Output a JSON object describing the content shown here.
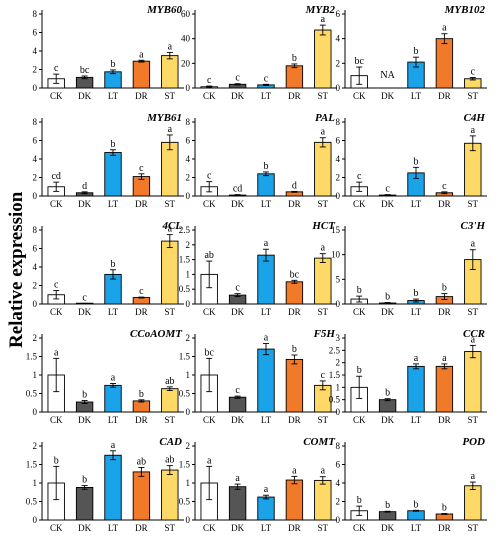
{
  "figure": {
    "ylabel": "Relative expression",
    "categories": [
      "CK",
      "DK",
      "LT",
      "DR",
      "ST"
    ],
    "bar_colors": [
      "#ffffff",
      "#555555",
      "#1aa3e8",
      "#f07a2a",
      "#ffd966"
    ]
  },
  "chart_data": [
    {
      "type": "bar",
      "title": "MYB60",
      "ylim": [
        0,
        8
      ],
      "yticks": [
        0,
        2,
        4,
        6,
        8
      ],
      "categories": [
        "CK",
        "DK",
        "LT",
        "DR",
        "ST"
      ],
      "values": [
        1.0,
        1.15,
        1.75,
        2.9,
        3.5
      ],
      "errors": [
        0.5,
        0.15,
        0.2,
        0.1,
        0.35
      ],
      "labels": [
        "c",
        "bc",
        "b",
        "a",
        "a"
      ]
    },
    {
      "type": "bar",
      "title": "MYB2",
      "ylim": [
        0,
        60
      ],
      "yticks": [
        0,
        20,
        40,
        60
      ],
      "categories": [
        "CK",
        "DK",
        "LT",
        "DR",
        "ST"
      ],
      "values": [
        1.0,
        3.0,
        2.5,
        18.0,
        47.0
      ],
      "errors": [
        0.6,
        0.5,
        0.5,
        1.5,
        4.0
      ],
      "labels": [
        "c",
        "c",
        "c",
        "b",
        "a"
      ]
    },
    {
      "type": "bar",
      "title": "MYB102",
      "ylim": [
        0,
        6
      ],
      "yticks": [
        0,
        2,
        4,
        6
      ],
      "categories": [
        "CK",
        "DK",
        "LT",
        "DR",
        "ST"
      ],
      "values": [
        1.0,
        null,
        2.1,
        4.0,
        0.75
      ],
      "errors": [
        0.7,
        null,
        0.4,
        0.4,
        0.1
      ],
      "labels": [
        "bc",
        "NA",
        "b",
        "a",
        "c"
      ]
    },
    {
      "type": "bar",
      "title": "MYB61",
      "ylim": [
        0,
        8
      ],
      "yticks": [
        0,
        2,
        4,
        6,
        8
      ],
      "categories": [
        "CK",
        "DK",
        "LT",
        "DR",
        "ST"
      ],
      "values": [
        1.0,
        0.35,
        4.7,
        2.1,
        5.8
      ],
      "errors": [
        0.5,
        0.1,
        0.3,
        0.3,
        0.8
      ],
      "labels": [
        "cd",
        "d",
        "b",
        "c",
        "a"
      ]
    },
    {
      "type": "bar",
      "title": "PAL",
      "ylim": [
        0,
        8
      ],
      "yticks": [
        0,
        2,
        4,
        6,
        8
      ],
      "categories": [
        "CK",
        "DK",
        "LT",
        "DR",
        "ST"
      ],
      "values": [
        1.0,
        0.1,
        2.4,
        0.45,
        5.8
      ],
      "errors": [
        0.55,
        0.05,
        0.2,
        0.05,
        0.5
      ],
      "labels": [
        "c",
        "cd",
        "b",
        "d",
        "a"
      ]
    },
    {
      "type": "bar",
      "title": "C4H",
      "ylim": [
        0,
        8
      ],
      "yticks": [
        0,
        2,
        4,
        6,
        8
      ],
      "categories": [
        "CK",
        "DK",
        "LT",
        "DR",
        "ST"
      ],
      "values": [
        1.0,
        0.1,
        2.5,
        0.35,
        5.7
      ],
      "errors": [
        0.5,
        0.05,
        0.6,
        0.1,
        0.8
      ],
      "labels": [
        "c",
        "c",
        "b",
        "c",
        "a"
      ]
    },
    {
      "type": "bar",
      "title": "4CL",
      "ylim": [
        0,
        8
      ],
      "yticks": [
        0,
        2,
        4,
        6,
        8
      ],
      "categories": [
        "CK",
        "DK",
        "LT",
        "DR",
        "ST"
      ],
      "values": [
        1.0,
        0.05,
        3.2,
        0.7,
        6.8
      ],
      "errors": [
        0.45,
        0.02,
        0.5,
        0.05,
        0.7
      ],
      "labels": [
        "c",
        "c",
        "b",
        "c",
        "a"
      ]
    },
    {
      "type": "bar",
      "title": "HCT",
      "ylim": [
        0,
        2.5
      ],
      "yticks": [
        0,
        0.5,
        1,
        1.5,
        2,
        2.5
      ],
      "categories": [
        "CK",
        "DK",
        "LT",
        "DR",
        "ST"
      ],
      "values": [
        1.0,
        0.3,
        1.65,
        0.75,
        1.55
      ],
      "errors": [
        0.45,
        0.05,
        0.2,
        0.05,
        0.15
      ],
      "labels": [
        "ab",
        "c",
        "a",
        "bc",
        "a"
      ]
    },
    {
      "type": "bar",
      "title": "C3'H",
      "ylim": [
        0,
        15
      ],
      "yticks": [
        0,
        5,
        10,
        15
      ],
      "categories": [
        "CK",
        "DK",
        "LT",
        "DR",
        "ST"
      ],
      "values": [
        1.0,
        0.2,
        0.7,
        1.5,
        9.0
      ],
      "errors": [
        0.6,
        0.1,
        0.3,
        0.6,
        2.0
      ],
      "labels": [
        "b",
        "b",
        "b",
        "b",
        "a"
      ]
    },
    {
      "type": "bar",
      "title": "CCoAOMT",
      "ylim": [
        0,
        2
      ],
      "yticks": [
        0,
        0.5,
        1,
        1.5,
        2
      ],
      "categories": [
        "CK",
        "DK",
        "LT",
        "DR",
        "ST"
      ],
      "values": [
        1.0,
        0.27,
        0.72,
        0.3,
        0.63
      ],
      "errors": [
        0.45,
        0.04,
        0.05,
        0.03,
        0.05
      ],
      "labels": [
        "a",
        "b",
        "a",
        "b",
        "ab"
      ]
    },
    {
      "type": "bar",
      "title": "F5H",
      "ylim": [
        0,
        2
      ],
      "yticks": [
        0,
        0.5,
        1,
        1.5,
        2
      ],
      "categories": [
        "CK",
        "DK",
        "LT",
        "DR",
        "ST"
      ],
      "values": [
        1.0,
        0.4,
        1.7,
        1.42,
        0.72
      ],
      "errors": [
        0.45,
        0.03,
        0.15,
        0.12,
        0.12
      ],
      "labels": [
        "bc",
        "c",
        "a",
        "b",
        "c"
      ]
    },
    {
      "type": "bar",
      "title": "CCR",
      "ylim": [
        0,
        3
      ],
      "yticks": [
        0,
        0.5,
        1,
        1.5,
        2,
        2.5,
        3
      ],
      "categories": [
        "CK",
        "DK",
        "LT",
        "DR",
        "ST"
      ],
      "values": [
        1.0,
        0.5,
        1.85,
        1.85,
        2.45
      ],
      "errors": [
        0.45,
        0.04,
        0.1,
        0.1,
        0.25
      ],
      "labels": [
        "b",
        "b",
        "a",
        "a",
        "a"
      ]
    },
    {
      "type": "bar",
      "title": "CAD",
      "ylim": [
        0,
        2
      ],
      "yticks": [
        0,
        0.5,
        1,
        1.5,
        2
      ],
      "categories": [
        "CK",
        "DK",
        "LT",
        "DR",
        "ST"
      ],
      "values": [
        1.0,
        0.88,
        1.75,
        1.3,
        1.35
      ],
      "errors": [
        0.45,
        0.05,
        0.12,
        0.12,
        0.12
      ],
      "labels": [
        "b",
        "b",
        "a",
        "ab",
        "ab"
      ]
    },
    {
      "type": "bar",
      "title": "COMT",
      "ylim": [
        0,
        2
      ],
      "yticks": [
        0,
        0.5,
        1,
        1.5,
        2
      ],
      "categories": [
        "CK",
        "DK",
        "LT",
        "DR",
        "ST"
      ],
      "values": [
        1.0,
        0.9,
        0.62,
        1.08,
        1.07
      ],
      "errors": [
        0.45,
        0.07,
        0.05,
        0.1,
        0.1
      ],
      "labels": [
        "a",
        "a",
        "a",
        "a",
        "a"
      ]
    },
    {
      "type": "bar",
      "title": "POD",
      "ylim": [
        0,
        8
      ],
      "yticks": [
        0,
        2,
        4,
        6,
        8
      ],
      "categories": [
        "CK",
        "DK",
        "LT",
        "DR",
        "ST"
      ],
      "values": [
        1.0,
        0.9,
        1.0,
        0.65,
        3.7
      ],
      "errors": [
        0.5,
        0.05,
        0.05,
        0.05,
        0.4
      ],
      "labels": [
        "b",
        "b",
        "b",
        "b",
        "a"
      ]
    }
  ]
}
